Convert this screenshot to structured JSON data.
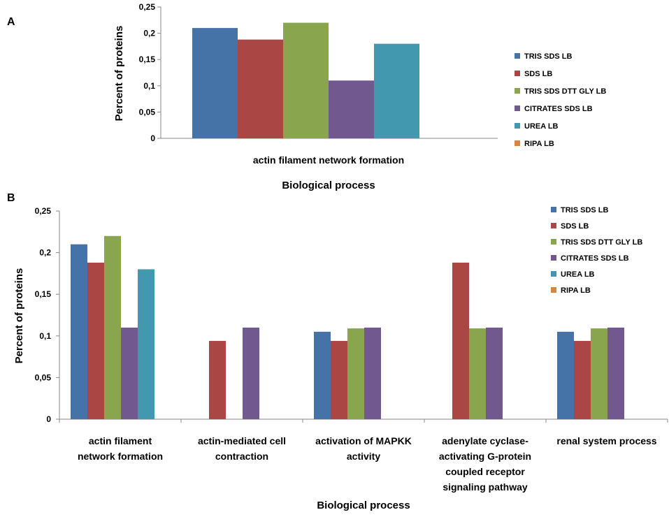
{
  "chart_data": [
    {
      "panel": "A",
      "type": "bar",
      "ylabel": "Percent of proteins",
      "xlabel": "Biological process",
      "ylim": [
        0,
        0.25
      ],
      "yticks": [
        "0",
        "0,05",
        "0,1",
        "0,15",
        "0,2",
        "0,25"
      ],
      "categories": [
        "actin filament network formation"
      ],
      "series": [
        {
          "name": "TRIS SDS LB",
          "color": "#4572a7",
          "values": [
            0.21
          ]
        },
        {
          "name": "SDS LB",
          "color": "#aa4643",
          "values": [
            0.188
          ]
        },
        {
          "name": "TRIS SDS DTT GLY LB",
          "color": "#89a54e",
          "values": [
            0.22
          ]
        },
        {
          "name": "CITRATES SDS LB",
          "color": "#71588f",
          "values": [
            0.11
          ]
        },
        {
          "name": "UREA LB",
          "color": "#4198af",
          "values": [
            0.18
          ]
        },
        {
          "name": "RIPA LB",
          "color": "#db843d",
          "values": [
            0
          ]
        }
      ]
    },
    {
      "panel": "B",
      "type": "bar",
      "ylabel": "Percent of proteins",
      "xlabel": "Biological process",
      "ylim": [
        0,
        0.25
      ],
      "yticks": [
        "0",
        "0,05",
        "0,1",
        "0,15",
        "0,2",
        "0,25"
      ],
      "categories": [
        [
          "actin filament",
          "network formation"
        ],
        [
          "actin-mediated cell",
          "contraction"
        ],
        [
          "activation of MAPKK",
          "activity"
        ],
        [
          "adenylate cyclase-",
          "activating G-protein",
          "coupled receptor",
          "signaling pathway"
        ],
        [
          "renal system process"
        ]
      ],
      "series": [
        {
          "name": "TRIS SDS LB",
          "color": "#4572a7",
          "values": [
            0.21,
            0,
            0.105,
            0,
            0.105
          ]
        },
        {
          "name": "SDS LB",
          "color": "#aa4643",
          "values": [
            0.188,
            0.094,
            0.094,
            0.188,
            0.094
          ]
        },
        {
          "name": "TRIS SDS DTT GLY LB",
          "color": "#89a54e",
          "values": [
            0.22,
            0,
            0.109,
            0.109,
            0.109
          ]
        },
        {
          "name": "CITRATES SDS LB",
          "color": "#71588f",
          "values": [
            0.11,
            0.11,
            0.11,
            0.11,
            0.11
          ]
        },
        {
          "name": "UREA LB",
          "color": "#4198af",
          "values": [
            0.18,
            0,
            0,
            0,
            0
          ]
        },
        {
          "name": "RIPA LB",
          "color": "#db843d",
          "values": [
            0,
            0,
            0,
            0,
            0
          ]
        }
      ]
    }
  ]
}
